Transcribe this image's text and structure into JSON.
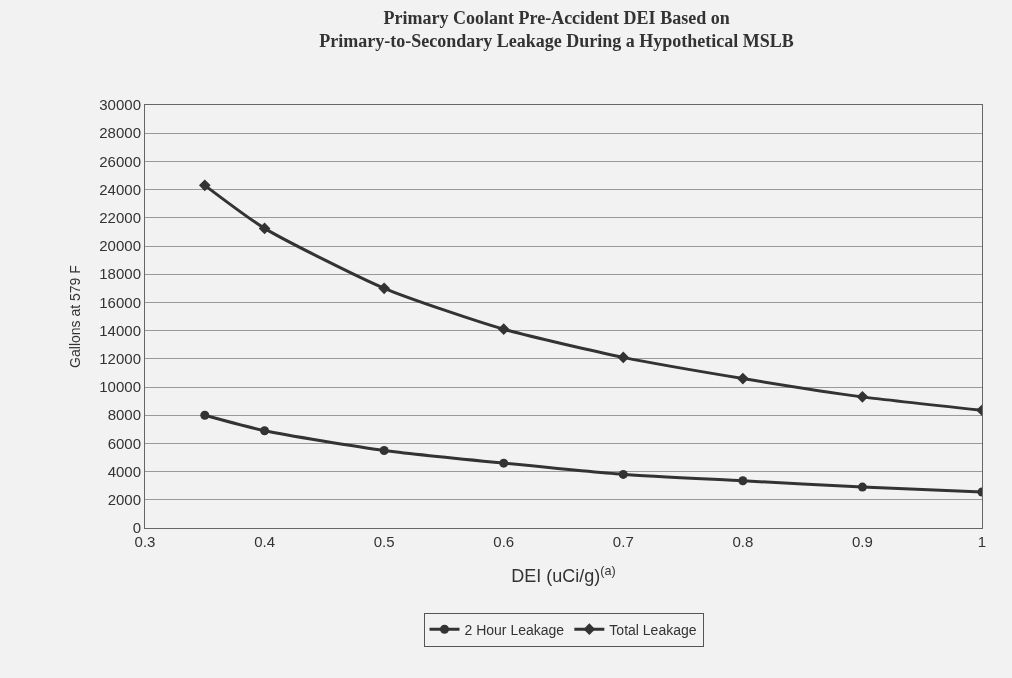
{
  "chart_data": {
    "type": "line",
    "title": "Primary Coolant Pre-Accident DEI Based on\nPrimary-to-Secondary Leakage During a Hypothetical MSLB",
    "xlabel": "DEI (uCi/g)$^{(a)}$",
    "ylabel": "Gallons at 579 F",
    "x": [
      0.35,
      0.4,
      0.5,
      0.6,
      0.7,
      0.8,
      0.9,
      1.0
    ],
    "series": [
      {
        "name": "2 Hour Leakage",
        "color": "#333333",
        "marker": "circle",
        "values": [
          8000,
          6900,
          5500,
          4600,
          3800,
          3350,
          2900,
          2550
        ]
      },
      {
        "name": "Total Leakage",
        "color": "#333333",
        "marker": "diamond",
        "values": [
          24300,
          21250,
          17000,
          14100,
          12100,
          10600,
          9300,
          8350
        ]
      }
    ],
    "xlim": [
      0.3,
      1.0
    ],
    "xticks": [
      0.3,
      0.4,
      0.5,
      0.6,
      0.7,
      0.8,
      0.9,
      1
    ],
    "ylim": [
      0,
      30000
    ],
    "yticks": [
      0,
      2000,
      4000,
      6000,
      8000,
      10000,
      12000,
      14000,
      16000,
      18000,
      20000,
      22000,
      24000,
      26000,
      28000,
      30000
    ],
    "grid": "y",
    "legend": "bottom",
    "line_style": "solid"
  }
}
